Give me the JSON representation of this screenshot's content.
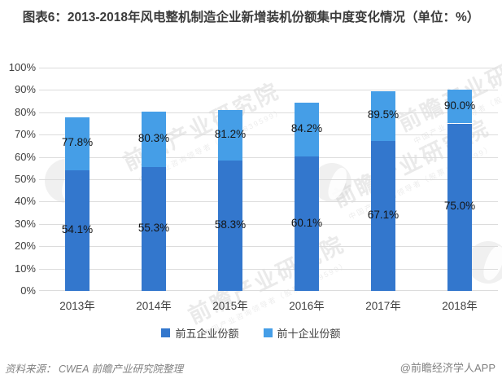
{
  "title": "图表6：2013-2018年风电整机制造企业新增装机份额集中度变化情况（单位：%）",
  "chart_data": {
    "type": "bar",
    "subtype": "stacked-overlay-column",
    "title": "图表6：2013-2018年风电整机制造企业新增装机份额集中度变化情况（单位：%）",
    "categories": [
      "2013年",
      "2014年",
      "2015年",
      "2016年",
      "2017年",
      "2018年"
    ],
    "series": [
      {
        "name": "前五企业份额",
        "color": "#3377CD",
        "values": [
          54.1,
          55.3,
          58.3,
          60.1,
          67.1,
          75.0
        ],
        "labels": [
          "54.1%",
          "55.3%",
          "58.3%",
          "60.1%",
          "67.1%",
          "75.0%"
        ]
      },
      {
        "name": "前十企业份额",
        "color": "#459EE7",
        "values": [
          77.8,
          80.3,
          81.2,
          84.2,
          89.5,
          90.0
        ],
        "labels": [
          "77.8%",
          "80.3%",
          "81.2%",
          "84.2%",
          "89.5%",
          "90.0%"
        ]
      }
    ],
    "xlabel": "",
    "ylabel": "",
    "ylim": [
      0,
      100
    ],
    "ytick_step": 10,
    "ytick_labels": [
      "0%",
      "10%",
      "20%",
      "30%",
      "40%",
      "50%",
      "60%",
      "70%",
      "80%",
      "90%",
      "100%"
    ],
    "grid": "horizontal",
    "gridline_color": "#dcdcdc",
    "legend_position": "bottom"
  },
  "footer": {
    "source": "资料来源： CWEA  前瞻产业研究院整理",
    "credit": "@前瞻经济学人APP"
  },
  "watermark": {
    "text": "前瞻产业研究院",
    "subtext": "中国产业咨询领导者（股票：839599）"
  }
}
